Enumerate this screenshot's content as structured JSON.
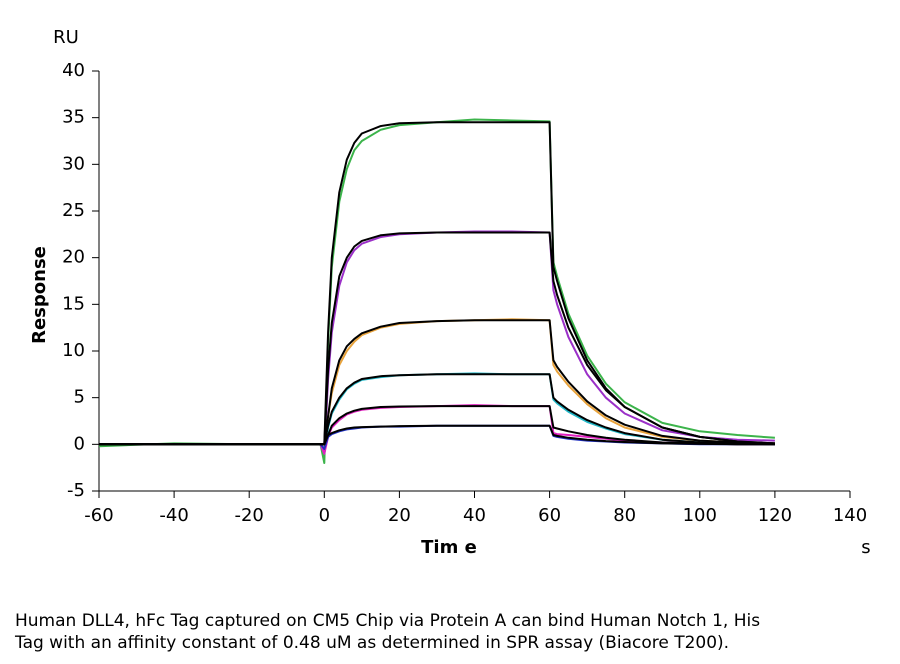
{
  "chart_data": {
    "type": "line",
    "y_unit": "RU",
    "ylabel": "Response",
    "xlabel": "Tim e",
    "x_unit": "s",
    "caption": [
      "Human DLL4, hFc Tag captured on CM5 Chip via Protein A can bind Human Notch 1, His",
      "Tag with an affinity constant of 0.48 uM as determined in SPR assay (Biacore T200)."
    ],
    "x": [
      -60,
      -40,
      -20,
      -1,
      0,
      1,
      2,
      4,
      6,
      8,
      10,
      15,
      20,
      30,
      40,
      50,
      60,
      61,
      62,
      65,
      70,
      75,
      80,
      90,
      100,
      110,
      120
    ],
    "series": [
      {
        "color": "#3cb44b",
        "values": [
          -0.2,
          0.1,
          0,
          0,
          -2,
          11,
          19,
          26,
          29.5,
          31.5,
          32.5,
          33.7,
          34.2,
          34.5,
          34.8,
          34.7,
          34.6,
          19.5,
          18,
          14,
          9.5,
          6.5,
          4.5,
          2.3,
          1.4,
          1,
          0.7
        ]
      },
      {
        "color": "#9b30c8",
        "values": [
          0,
          0,
          0,
          0,
          -1,
          7,
          12,
          17,
          19.5,
          20.8,
          21.5,
          22.2,
          22.5,
          22.7,
          22.8,
          22.8,
          22.7,
          16.5,
          15,
          11.5,
          7.5,
          5,
          3.3,
          1.5,
          0.8,
          0.5,
          0.4
        ]
      },
      {
        "color": "#e8a33c",
        "values": [
          0,
          0,
          0,
          0,
          -1,
          3,
          5.5,
          8.5,
          10,
          11,
          11.7,
          12.5,
          12.9,
          13.2,
          13.3,
          13.4,
          13.3,
          8.5,
          7.8,
          6.3,
          4.3,
          2.8,
          1.8,
          0.8,
          0.4,
          0.2,
          0.1
        ]
      },
      {
        "color": "#22b8c8",
        "values": [
          0,
          0,
          0,
          0,
          -1,
          1.8,
          3.3,
          4.8,
          5.9,
          6.5,
          6.9,
          7.2,
          7.4,
          7.5,
          7.6,
          7.5,
          7.5,
          4.8,
          4.4,
          3.5,
          2.4,
          1.7,
          1.1,
          0.5,
          0.2,
          0.1,
          0
        ]
      },
      {
        "color": "#e020c0",
        "values": [
          0,
          0,
          0,
          0,
          -1,
          0.8,
          1.8,
          2.6,
          3.2,
          3.5,
          3.7,
          3.9,
          4,
          4.1,
          4.2,
          4.1,
          4.1,
          1.2,
          1.1,
          1,
          0.8,
          0.6,
          0.4,
          0.2,
          0.1,
          0,
          0
        ]
      },
      {
        "color": "#2030c0",
        "values": [
          0,
          0,
          0,
          0,
          -0.5,
          0.8,
          1.1,
          1.4,
          1.6,
          1.7,
          1.8,
          1.9,
          1.9,
          2,
          2,
          2,
          2,
          0.9,
          0.8,
          0.6,
          0.4,
          0.3,
          0.2,
          0.1,
          0,
          0,
          0
        ]
      },
      {
        "color": "#000000",
        "values": [
          0,
          0,
          0,
          0,
          0,
          12,
          20,
          27,
          30.5,
          32.3,
          33.3,
          34.1,
          34.4,
          34.5,
          34.5,
          34.5,
          34.5,
          19,
          17.5,
          13.5,
          9,
          6,
          4,
          1.8,
          0.8,
          0.3,
          0.1
        ]
      },
      {
        "color": "#000000",
        "values": [
          0,
          0,
          0,
          0,
          0,
          8,
          13,
          18,
          20,
          21.2,
          21.8,
          22.4,
          22.6,
          22.7,
          22.7,
          22.7,
          22.7,
          17.5,
          16,
          12.5,
          8.5,
          5.8,
          4,
          1.8,
          0.8,
          0.3,
          0.1
        ]
      },
      {
        "color": "#000000",
        "values": [
          0,
          0,
          0,
          0,
          0,
          3,
          6,
          9,
          10.5,
          11.3,
          11.9,
          12.6,
          13,
          13.2,
          13.3,
          13.3,
          13.3,
          9,
          8.3,
          6.7,
          4.6,
          3.1,
          2.1,
          0.9,
          0.4,
          0.2,
          0.1
        ]
      },
      {
        "color": "#000000",
        "values": [
          0,
          0,
          0,
          0,
          0,
          2,
          3.5,
          5,
          6,
          6.6,
          7,
          7.3,
          7.4,
          7.5,
          7.5,
          7.5,
          7.5,
          5,
          4.6,
          3.7,
          2.6,
          1.8,
          1.2,
          0.5,
          0.2,
          0.1,
          0
        ]
      },
      {
        "color": "#000000",
        "values": [
          0,
          0,
          0,
          0,
          0,
          1,
          2,
          2.8,
          3.3,
          3.6,
          3.8,
          4,
          4.05,
          4.1,
          4.1,
          4.1,
          4.1,
          1.8,
          1.7,
          1.4,
          1,
          0.7,
          0.5,
          0.2,
          0.1,
          0,
          0
        ]
      },
      {
        "color": "#000000",
        "values": [
          0,
          0,
          0,
          0,
          0,
          1,
          1.2,
          1.5,
          1.7,
          1.8,
          1.85,
          1.9,
          1.95,
          2,
          2,
          2,
          2,
          1,
          0.9,
          0.7,
          0.5,
          0.35,
          0.25,
          0.1,
          0.05,
          0,
          0
        ]
      }
    ],
    "xlim": [
      -60,
      140
    ],
    "xticks": [
      -60,
      -40,
      -20,
      0,
      20,
      40,
      60,
      80,
      100,
      120,
      140
    ],
    "ylim": [
      -5,
      40
    ],
    "yticks": [
      -5,
      0,
      5,
      10,
      15,
      20,
      25,
      30,
      35,
      40
    ]
  }
}
